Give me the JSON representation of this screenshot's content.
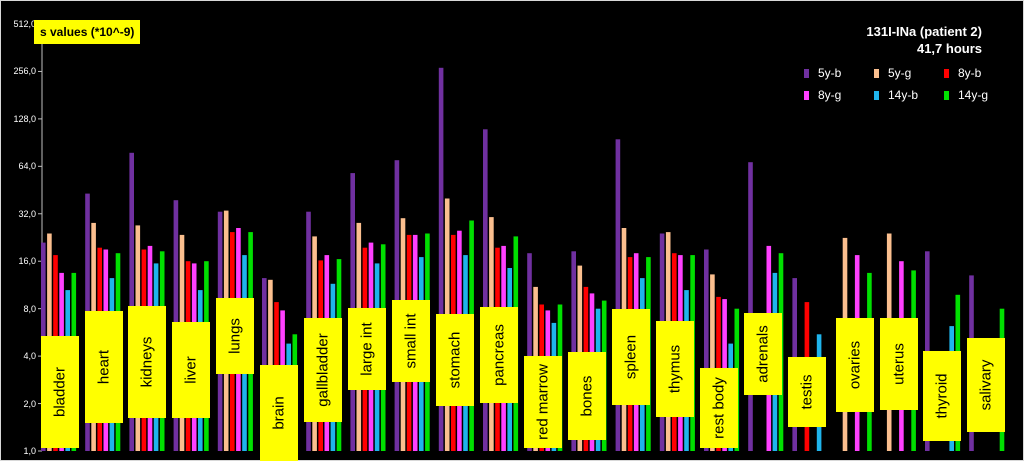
{
  "window": {
    "title": "s values (*10^-9)"
  },
  "chart_data": {
    "type": "bar",
    "title": "131I-INa (patient 2)",
    "subtitle": "41,7 hours",
    "ylabel": "s values (*10^-9)",
    "xlabel": "",
    "yscale": "log2",
    "ylim": [
      1,
      512
    ],
    "yticks": [
      "1,0",
      "2,0",
      "4,0",
      "8,0",
      "16,0",
      "32,0",
      "64,0",
      "128,0",
      "256,0",
      "512,0"
    ],
    "grid": false,
    "legend_position": "top-right",
    "categories": [
      "bladder",
      "heart",
      "kidneys",
      "liver",
      "lungs",
      "brain",
      "gallbladder",
      "large int",
      "small int",
      "stomach",
      "pancreas",
      "red marrow",
      "bones",
      "spleen",
      "thymus",
      "rest body",
      "adrenals",
      "testis",
      "ovaries",
      "uterus",
      "thyroid",
      "salivary"
    ],
    "series": [
      {
        "name": "5y-b",
        "color": "#7030a0",
        "values": [
          21,
          43,
          78,
          39,
          33,
          12.5,
          33,
          58,
          70,
          270,
          110,
          18,
          18.5,
          95,
          24,
          19,
          68,
          12.5,
          null,
          null,
          18.5,
          13
        ]
      },
      {
        "name": "5y-g",
        "color": "#fbbf8f",
        "values": [
          24,
          28,
          27,
          23.5,
          33.5,
          12.2,
          23,
          28,
          30,
          40,
          30.5,
          11,
          15,
          26,
          24.5,
          13.2,
          null,
          null,
          22.5,
          24,
          null,
          null
        ]
      },
      {
        "name": "8y-b",
        "color": "#ff0000",
        "values": [
          17.5,
          19.5,
          19,
          16,
          24.5,
          8.8,
          16.2,
          19.5,
          23.5,
          23.5,
          19.5,
          8.5,
          11,
          17,
          18,
          9.5,
          null,
          8.8,
          null,
          null,
          null,
          null
        ]
      },
      {
        "name": "8y-g",
        "color": "#ff40ff",
        "values": [
          13.5,
          19,
          20,
          15.5,
          26,
          7.8,
          17.5,
          21,
          23.5,
          25,
          20,
          7.8,
          10,
          18,
          17.5,
          9.2,
          20,
          null,
          17.5,
          16,
          null,
          null
        ]
      },
      {
        "name": "14y-b",
        "color": "#1fb4ec",
        "values": [
          10.5,
          12.5,
          15.5,
          10.5,
          17.5,
          4.8,
          11.5,
          15.5,
          17,
          17.5,
          14.5,
          6.5,
          8,
          12.5,
          10.5,
          4.8,
          13.5,
          5.5,
          null,
          null,
          6.2,
          null
        ]
      },
      {
        "name": "14y-g",
        "color": "#00e000",
        "values": [
          13.5,
          18,
          18.5,
          16,
          24.5,
          5.5,
          16.5,
          20.5,
          24,
          29,
          23,
          8.5,
          9,
          17,
          17.5,
          8,
          18,
          null,
          13.5,
          14,
          9.8,
          8
        ]
      }
    ]
  }
}
